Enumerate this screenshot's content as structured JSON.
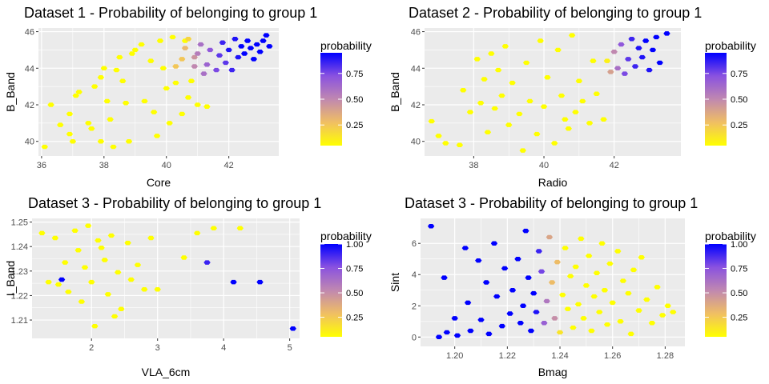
{
  "legend_title": "probability",
  "colors": {
    "panel_bg": "#ebebeb",
    "grid": "#ffffff",
    "gradient": [
      "#ffff00",
      "#f0bf63",
      "#c088b0",
      "#8a52e0",
      "#0000ff"
    ]
  },
  "chart_data": [
    {
      "type": "heatmap",
      "title": "Dataset 1 - Probability of belonging to group 1",
      "xlabel": "Core",
      "ylabel": "B_Band",
      "xlim": [
        35.9,
        43.6
      ],
      "ylim": [
        39.2,
        46.2
      ],
      "xticks": [
        36,
        38,
        40,
        42
      ],
      "yticks": [
        40,
        42,
        44,
        46
      ],
      "legend_ticks": [
        0.25,
        0.5,
        0.75
      ],
      "legend_tick_labels": [
        "0.25",
        "0.50",
        "0.75"
      ],
      "legend_range": [
        0.05,
        0.95
      ],
      "points": [
        [
          36.1,
          39.7,
          0.05
        ],
        [
          36.3,
          42.0,
          0.05
        ],
        [
          36.6,
          40.9,
          0.05
        ],
        [
          36.9,
          41.5,
          0.05
        ],
        [
          36.9,
          40.4,
          0.05
        ],
        [
          37.0,
          40.0,
          0.05
        ],
        [
          37.1,
          42.5,
          0.05
        ],
        [
          37.2,
          42.7,
          0.05
        ],
        [
          37.5,
          41.0,
          0.05
        ],
        [
          37.6,
          40.7,
          0.05
        ],
        [
          37.7,
          43.0,
          0.05
        ],
        [
          37.9,
          43.5,
          0.05
        ],
        [
          37.9,
          40.0,
          0.05
        ],
        [
          38.0,
          44.0,
          0.05
        ],
        [
          38.1,
          42.2,
          0.05
        ],
        [
          38.2,
          41.2,
          0.05
        ],
        [
          38.3,
          39.7,
          0.05
        ],
        [
          38.4,
          43.9,
          0.05
        ],
        [
          38.5,
          44.6,
          0.05
        ],
        [
          38.6,
          43.3,
          0.05
        ],
        [
          38.7,
          42.1,
          0.05
        ],
        [
          38.8,
          40.0,
          0.05
        ],
        [
          38.9,
          44.8,
          0.05
        ],
        [
          39.0,
          45.0,
          0.05
        ],
        [
          39.2,
          45.3,
          0.05
        ],
        [
          39.3,
          42.2,
          0.05
        ],
        [
          39.5,
          44.4,
          0.05
        ],
        [
          39.6,
          41.6,
          0.05
        ],
        [
          39.7,
          40.3,
          0.05
        ],
        [
          39.8,
          45.5,
          0.05
        ],
        [
          39.9,
          44.0,
          0.05
        ],
        [
          40.0,
          42.9,
          0.05
        ],
        [
          40.1,
          41.0,
          0.05
        ],
        [
          40.2,
          45.7,
          0.05
        ],
        [
          40.3,
          43.2,
          0.05
        ],
        [
          40.5,
          41.5,
          0.05
        ],
        [
          40.6,
          45.5,
          0.05
        ],
        [
          40.7,
          42.4,
          0.05
        ],
        [
          40.8,
          43.3,
          0.05
        ],
        [
          41.0,
          42.0,
          0.05
        ],
        [
          41.3,
          41.9,
          0.05
        ],
        [
          40.3,
          44.1,
          0.25
        ],
        [
          40.5,
          44.5,
          0.25
        ],
        [
          40.6,
          45.1,
          0.3
        ],
        [
          40.7,
          45.6,
          0.2
        ],
        [
          40.9,
          44.6,
          0.45
        ],
        [
          40.9,
          44.1,
          0.5
        ],
        [
          41.0,
          44.8,
          0.55
        ],
        [
          41.1,
          45.3,
          0.6
        ],
        [
          41.2,
          43.7,
          0.6
        ],
        [
          41.3,
          44.2,
          0.65
        ],
        [
          41.4,
          45.0,
          0.7
        ],
        [
          41.6,
          43.9,
          0.75
        ],
        [
          41.7,
          44.7,
          0.8
        ],
        [
          41.8,
          45.4,
          0.85
        ],
        [
          41.9,
          44.3,
          0.8
        ],
        [
          42.0,
          45.0,
          0.9
        ],
        [
          42.1,
          43.9,
          0.85
        ],
        [
          42.2,
          45.6,
          0.9
        ],
        [
          42.3,
          44.6,
          0.9
        ],
        [
          42.4,
          45.2,
          0.95
        ],
        [
          42.5,
          44.8,
          0.95
        ],
        [
          42.6,
          45.5,
          0.95
        ],
        [
          42.7,
          45.1,
          0.95
        ],
        [
          42.8,
          44.5,
          0.95
        ],
        [
          42.9,
          45.3,
          0.95
        ],
        [
          43.0,
          44.9,
          0.95
        ],
        [
          43.1,
          45.5,
          0.95
        ],
        [
          43.2,
          45.8,
          0.95
        ],
        [
          43.3,
          45.2,
          0.95
        ]
      ]
    },
    {
      "type": "heatmap",
      "title": "Dataset 2 - Probability of belonging to group 1",
      "xlabel": "Radio",
      "ylabel": "B_Band",
      "xlim": [
        36.6,
        43.9
      ],
      "ylim": [
        39.2,
        46.2
      ],
      "xticks": [
        38,
        40,
        42
      ],
      "yticks": [
        40,
        42,
        44,
        46
      ],
      "legend_ticks": [
        0.25,
        0.5,
        0.75
      ],
      "legend_tick_labels": [
        "0.25",
        "0.50",
        "0.75"
      ],
      "legend_range": [
        0.05,
        0.95
      ],
      "points": [
        [
          36.8,
          41.1,
          0.05
        ],
        [
          37.0,
          40.3,
          0.05
        ],
        [
          37.2,
          39.9,
          0.05
        ],
        [
          37.6,
          39.8,
          0.05
        ],
        [
          37.7,
          42.8,
          0.05
        ],
        [
          37.9,
          41.6,
          0.05
        ],
        [
          38.1,
          44.5,
          0.05
        ],
        [
          38.2,
          42.1,
          0.05
        ],
        [
          38.3,
          43.4,
          0.05
        ],
        [
          38.4,
          40.5,
          0.05
        ],
        [
          38.5,
          44.8,
          0.05
        ],
        [
          38.6,
          41.8,
          0.05
        ],
        [
          38.7,
          43.9,
          0.05
        ],
        [
          38.8,
          42.5,
          0.05
        ],
        [
          38.9,
          45.2,
          0.05
        ],
        [
          39.0,
          40.9,
          0.05
        ],
        [
          39.1,
          43.2,
          0.05
        ],
        [
          39.3,
          41.5,
          0.05
        ],
        [
          39.4,
          39.5,
          0.05
        ],
        [
          39.5,
          44.3,
          0.05
        ],
        [
          39.6,
          42.2,
          0.05
        ],
        [
          39.8,
          40.4,
          0.05
        ],
        [
          39.9,
          45.5,
          0.05
        ],
        [
          40.0,
          41.9,
          0.05
        ],
        [
          40.1,
          43.5,
          0.05
        ],
        [
          40.3,
          39.9,
          0.05
        ],
        [
          40.4,
          45.0,
          0.05
        ],
        [
          40.5,
          42.5,
          0.05
        ],
        [
          40.6,
          41.2,
          0.05
        ],
        [
          40.7,
          40.7,
          0.05
        ],
        [
          40.8,
          45.8,
          0.05
        ],
        [
          40.9,
          41.6,
          0.05
        ],
        [
          41.0,
          43.3,
          0.05
        ],
        [
          41.1,
          42.2,
          0.05
        ],
        [
          41.3,
          41.0,
          0.05
        ],
        [
          41.4,
          44.4,
          0.05
        ],
        [
          41.5,
          42.6,
          0.05
        ],
        [
          41.7,
          41.2,
          0.05
        ],
        [
          41.8,
          44.4,
          0.1
        ],
        [
          41.9,
          43.8,
          0.4
        ],
        [
          42.0,
          44.9,
          0.5
        ],
        [
          42.1,
          44.0,
          0.6
        ],
        [
          42.2,
          45.3,
          0.7
        ],
        [
          42.3,
          43.7,
          0.75
        ],
        [
          42.4,
          44.5,
          0.8
        ],
        [
          42.5,
          45.6,
          0.85
        ],
        [
          42.6,
          44.1,
          0.85
        ],
        [
          42.7,
          45.1,
          0.9
        ],
        [
          42.8,
          44.6,
          0.9
        ],
        [
          42.9,
          45.5,
          0.95
        ],
        [
          43.0,
          43.9,
          0.9
        ],
        [
          43.1,
          45.0,
          0.95
        ],
        [
          43.2,
          45.7,
          0.95
        ],
        [
          43.3,
          44.3,
          0.95
        ],
        [
          43.5,
          45.9,
          0.95
        ]
      ]
    },
    {
      "type": "heatmap",
      "title": "Dataset 3 - Probability of belonging to group 1",
      "xlabel": "VLA_6cm",
      "ylabel": "I_Band",
      "xlim": [
        1.1,
        5.15
      ],
      "ylim": [
        1.2025,
        1.2515
      ],
      "xticks": [
        2,
        3,
        4,
        5
      ],
      "yticks": [
        1.21,
        1.22,
        1.23,
        1.24,
        1.25
      ],
      "legend_ticks": [
        0.25,
        0.5,
        0.75,
        1.0
      ],
      "legend_tick_labels": [
        "0.25",
        "0.50",
        "0.75",
        "1.00"
      ],
      "legend_range": [
        0.05,
        1.0
      ],
      "points": [
        [
          1.25,
          1.2455,
          0.05
        ],
        [
          1.35,
          1.2255,
          0.05
        ],
        [
          1.45,
          1.2435,
          0.05
        ],
        [
          1.5,
          1.2245,
          0.05
        ],
        [
          1.55,
          1.2265,
          1.0
        ],
        [
          1.6,
          1.2335,
          0.05
        ],
        [
          1.65,
          1.2215,
          0.05
        ],
        [
          1.75,
          1.2465,
          0.05
        ],
        [
          1.8,
          1.2385,
          0.05
        ],
        [
          1.85,
          1.2175,
          0.05
        ],
        [
          1.9,
          1.2315,
          0.05
        ],
        [
          1.95,
          1.2485,
          0.05
        ],
        [
          2.0,
          1.2255,
          0.05
        ],
        [
          2.05,
          1.2075,
          0.05
        ],
        [
          2.1,
          1.2425,
          0.05
        ],
        [
          2.15,
          1.2395,
          0.05
        ],
        [
          2.2,
          1.2345,
          0.05
        ],
        [
          2.25,
          1.2205,
          0.05
        ],
        [
          2.3,
          1.2445,
          0.05
        ],
        [
          2.35,
          1.2115,
          0.05
        ],
        [
          2.4,
          1.2295,
          0.05
        ],
        [
          2.45,
          1.2145,
          0.05
        ],
        [
          2.55,
          1.2415,
          0.05
        ],
        [
          2.6,
          1.2265,
          0.05
        ],
        [
          2.7,
          1.2325,
          0.05
        ],
        [
          2.8,
          1.2225,
          0.05
        ],
        [
          2.9,
          1.2435,
          0.05
        ],
        [
          3.0,
          1.2225,
          0.05
        ],
        [
          3.4,
          1.2355,
          0.05
        ],
        [
          3.6,
          1.2455,
          0.05
        ],
        [
          3.75,
          1.2335,
          0.9
        ],
        [
          3.85,
          1.2475,
          0.05
        ],
        [
          4.15,
          1.2255,
          1.0
        ],
        [
          4.25,
          1.2475,
          0.05
        ],
        [
          4.55,
          1.2255,
          1.0
        ],
        [
          5.05,
          1.2065,
          1.0
        ]
      ]
    },
    {
      "type": "heatmap",
      "title": "Dataset 3 - Probability of belonging to group 1",
      "xlabel": "Bmag",
      "ylabel": "Sint",
      "xlim": [
        1.187,
        1.2875
      ],
      "ylim": [
        -0.6,
        7.6
      ],
      "xticks": [
        1.2,
        1.22,
        1.24,
        1.26,
        1.28
      ],
      "yticks": [
        0,
        2,
        4,
        6
      ],
      "legend_ticks": [
        0.25,
        0.5,
        0.75,
        1.0
      ],
      "legend_tick_labels": [
        "0.25",
        "0.50",
        "0.75",
        "1.00"
      ],
      "legend_range": [
        0.05,
        1.0
      ],
      "points": [
        [
          1.191,
          7.1,
          1.0
        ],
        [
          1.194,
          0.0,
          1.0
        ],
        [
          1.196,
          3.8,
          1.0
        ],
        [
          1.197,
          0.3,
          1.0
        ],
        [
          1.2,
          1.2,
          1.0
        ],
        [
          1.201,
          0.1,
          1.0
        ],
        [
          1.204,
          5.7,
          1.0
        ],
        [
          1.205,
          2.2,
          1.0
        ],
        [
          1.206,
          0.4,
          1.0
        ],
        [
          1.209,
          4.9,
          1.0
        ],
        [
          1.21,
          1.1,
          1.0
        ],
        [
          1.212,
          3.5,
          1.0
        ],
        [
          1.213,
          0.2,
          1.0
        ],
        [
          1.215,
          6.0,
          1.0
        ],
        [
          1.216,
          2.6,
          1.0
        ],
        [
          1.218,
          0.7,
          1.0
        ],
        [
          1.219,
          4.4,
          1.0
        ],
        [
          1.221,
          1.5,
          1.0
        ],
        [
          1.222,
          3.0,
          1.0
        ],
        [
          1.224,
          5.0,
          1.0
        ],
        [
          1.225,
          0.9,
          1.0
        ],
        [
          1.226,
          2.0,
          1.0
        ],
        [
          1.227,
          6.8,
          1.0
        ],
        [
          1.228,
          3.8,
          1.0
        ],
        [
          1.229,
          0.4,
          1.0
        ],
        [
          1.23,
          2.8,
          1.0
        ],
        [
          1.231,
          1.6,
          0.95
        ],
        [
          1.232,
          5.5,
          0.9
        ],
        [
          1.233,
          4.2,
          0.8
        ],
        [
          1.234,
          0.9,
          0.7
        ],
        [
          1.235,
          2.3,
          0.6
        ],
        [
          1.236,
          6.4,
          0.4
        ],
        [
          1.237,
          3.5,
          0.3
        ],
        [
          1.238,
          1.2,
          0.5
        ],
        [
          1.239,
          4.8,
          0.3
        ],
        [
          1.24,
          0.3,
          0.15
        ],
        [
          1.241,
          2.7,
          0.05
        ],
        [
          1.242,
          5.7,
          0.05
        ],
        [
          1.243,
          1.8,
          0.05
        ],
        [
          1.244,
          3.9,
          0.05
        ],
        [
          1.245,
          0.6,
          0.05
        ],
        [
          1.246,
          4.5,
          0.05
        ],
        [
          1.247,
          2.1,
          0.05
        ],
        [
          1.248,
          6.3,
          0.05
        ],
        [
          1.249,
          1.2,
          0.05
        ],
        [
          1.25,
          3.3,
          0.05
        ],
        [
          1.251,
          5.2,
          0.05
        ],
        [
          1.252,
          0.4,
          0.05
        ],
        [
          1.253,
          2.6,
          0.05
        ],
        [
          1.254,
          4.1,
          0.05
        ],
        [
          1.255,
          1.6,
          0.05
        ],
        [
          1.256,
          6.0,
          0.05
        ],
        [
          1.257,
          3.0,
          0.05
        ],
        [
          1.258,
          0.8,
          0.05
        ],
        [
          1.259,
          4.7,
          0.05
        ],
        [
          1.26,
          2.2,
          0.05
        ],
        [
          1.262,
          5.5,
          0.05
        ],
        [
          1.263,
          1.0,
          0.05
        ],
        [
          1.264,
          3.6,
          0.05
        ],
        [
          1.266,
          2.8,
          0.05
        ],
        [
          1.267,
          0.2,
          0.05
        ],
        [
          1.268,
          4.3,
          0.05
        ],
        [
          1.27,
          1.7,
          0.05
        ],
        [
          1.271,
          5.1,
          0.05
        ],
        [
          1.273,
          2.4,
          0.05
        ],
        [
          1.275,
          0.9,
          0.05
        ],
        [
          1.277,
          3.2,
          0.05
        ],
        [
          1.279,
          1.4,
          0.05
        ],
        [
          1.281,
          2.0,
          0.05
        ],
        [
          1.283,
          1.6,
          0.05
        ]
      ]
    }
  ]
}
